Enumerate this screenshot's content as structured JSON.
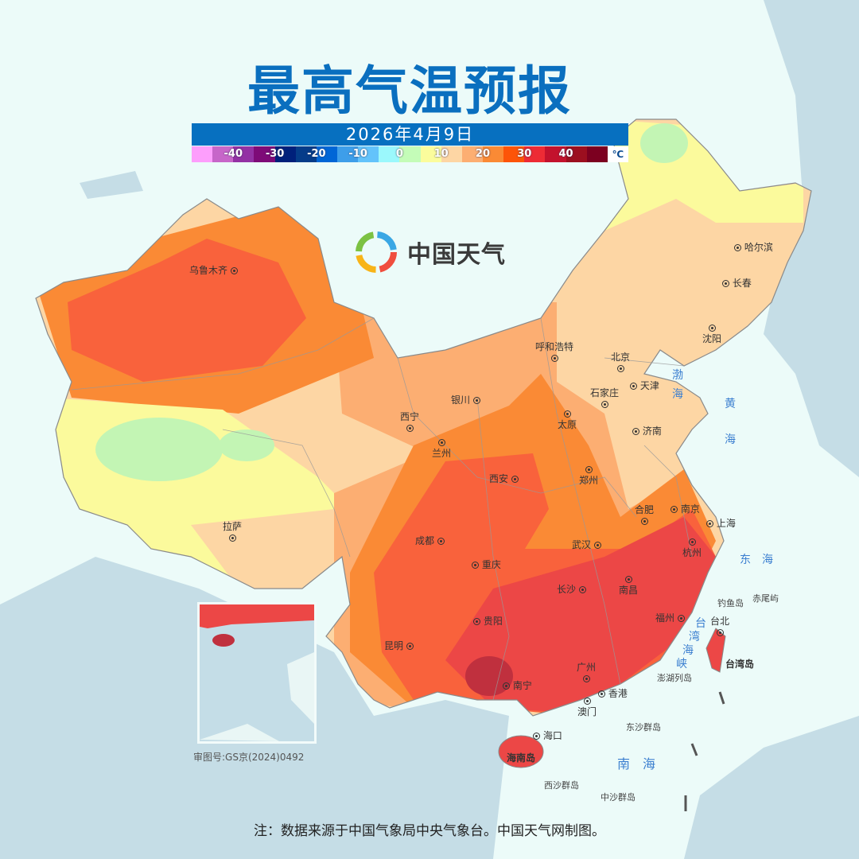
{
  "title": "最高气温预报",
  "date": "2026年4月9日",
  "legend": {
    "unit": "℃",
    "bins": [
      {
        "color": "#fd9efc",
        "label": ""
      },
      {
        "color": "#c766c9",
        "label": "-40"
      },
      {
        "color": "#9331a4",
        "label": ""
      },
      {
        "color": "#7e0b78",
        "label": "-30"
      },
      {
        "color": "#00207b",
        "label": ""
      },
      {
        "color": "#053c89",
        "label": "-20"
      },
      {
        "color": "#0066d6",
        "label": ""
      },
      {
        "color": "#3e9ee9",
        "label": "-10"
      },
      {
        "color": "#63c3fb",
        "label": ""
      },
      {
        "color": "#9bf8fc",
        "label": "0"
      },
      {
        "color": "#c4fcb8",
        "label": ""
      },
      {
        "color": "#fbfc9c",
        "label": "10"
      },
      {
        "color": "#fdd6a4",
        "label": ""
      },
      {
        "color": "#fcae72",
        "label": "20"
      },
      {
        "color": "#fa8a35",
        "label": ""
      },
      {
        "color": "#fd5408",
        "label": "30"
      },
      {
        "color": "#ed2b35",
        "label": ""
      },
      {
        "color": "#c3122d",
        "label": "40"
      },
      {
        "color": "#9c0f1f",
        "label": ""
      },
      {
        "color": "#7c0020",
        "label": ""
      }
    ]
  },
  "logo": {
    "text": "中国天气"
  },
  "cities": [
    "乌鲁木齐",
    "呼和浩特",
    "北京",
    "天津",
    "石家庄",
    "太原",
    "济南",
    "银川",
    "西宁",
    "兰州",
    "西安",
    "郑州",
    "合肥",
    "南京",
    "上海",
    "杭州",
    "武汉",
    "成都",
    "重庆",
    "长沙",
    "南昌",
    "福州",
    "台北",
    "贵阳",
    "昆明",
    "南宁",
    "广州",
    "香港",
    "澳门",
    "海口",
    "拉萨",
    "哈尔滨",
    "长春",
    "沈阳"
  ],
  "regions": {
    "taiwan": "台湾岛",
    "hainan": "海南岛"
  },
  "seas": {
    "bohai": "渤\n海",
    "huanghai_1": "黄",
    "huanghai_2": "海",
    "donghai": "东　海",
    "strait_1": "台",
    "strait_2": "湾",
    "strait_3": "海",
    "strait_4": "峡",
    "nanhai": "南　海"
  },
  "islands": {
    "diaoyu": "钓鱼岛",
    "chiwei": "赤尾屿",
    "penghu": "澎湖列岛",
    "dongsha": "东沙群岛",
    "xisha": "西沙群岛",
    "zhongsha": "中沙群岛"
  },
  "approval": "审图号:GS京(2024)0492",
  "note": "注：数据来源于中国气象局中央气象台。中国天气网制图。"
}
